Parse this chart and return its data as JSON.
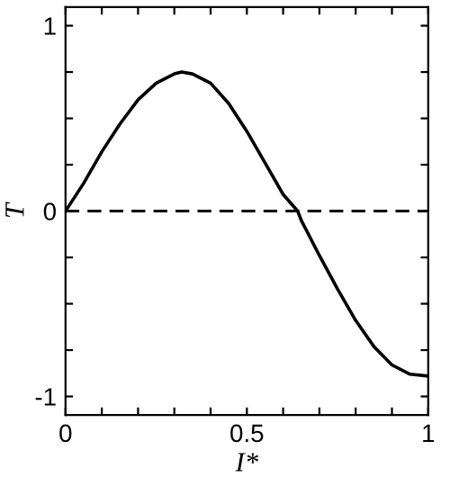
{
  "chart_data": {
    "type": "line",
    "xlabel": "I*",
    "ylabel": "T",
    "x": [
      0,
      0.05,
      0.1,
      0.15,
      0.2,
      0.25,
      0.3,
      0.32,
      0.35,
      0.4,
      0.45,
      0.5,
      0.55,
      0.6,
      0.64,
      0.65,
      0.7,
      0.75,
      0.8,
      0.85,
      0.9,
      0.95,
      1
    ],
    "series": [
      {
        "color": "#000000",
        "values": [
          0,
          0.15,
          0.32,
          0.47,
          0.6,
          0.69,
          0.74,
          0.75,
          0.74,
          0.69,
          0.58,
          0.43,
          0.26,
          0.09,
          0,
          -0.05,
          -0.24,
          -0.42,
          -0.59,
          -0.73,
          -0.83,
          -0.88,
          -0.89
        ]
      }
    ],
    "xlim": [
      0,
      1
    ],
    "ylim": [
      -1.1,
      1.1
    ],
    "xticks": [
      0,
      {
        "value": 0.1,
        "label": null
      },
      {
        "value": 0.2,
        "label": null
      },
      {
        "value": 0.3,
        "label": null
      },
      {
        "value": 0.4,
        "label": null
      },
      0.5,
      {
        "value": 0.6,
        "label": null
      },
      {
        "value": 0.7,
        "label": null
      },
      {
        "value": 0.8,
        "label": null
      },
      {
        "value": 0.9,
        "label": null
      },
      1
    ],
    "yticks": [
      -1,
      {
        "value": -0.75,
        "label": null
      },
      {
        "value": -0.5,
        "label": null
      },
      {
        "value": -0.25,
        "label": null
      },
      0,
      {
        "value": 0.25,
        "label": null
      },
      {
        "value": 0.5,
        "label": null
      },
      {
        "value": 0.75,
        "label": null
      },
      1
    ],
    "ref_lines": [
      {
        "axis": "y",
        "value": 0,
        "color": "#000000",
        "line_style": "dashed"
      }
    ],
    "grid": false,
    "legend": false,
    "marker": "none",
    "line_style": "solid"
  }
}
